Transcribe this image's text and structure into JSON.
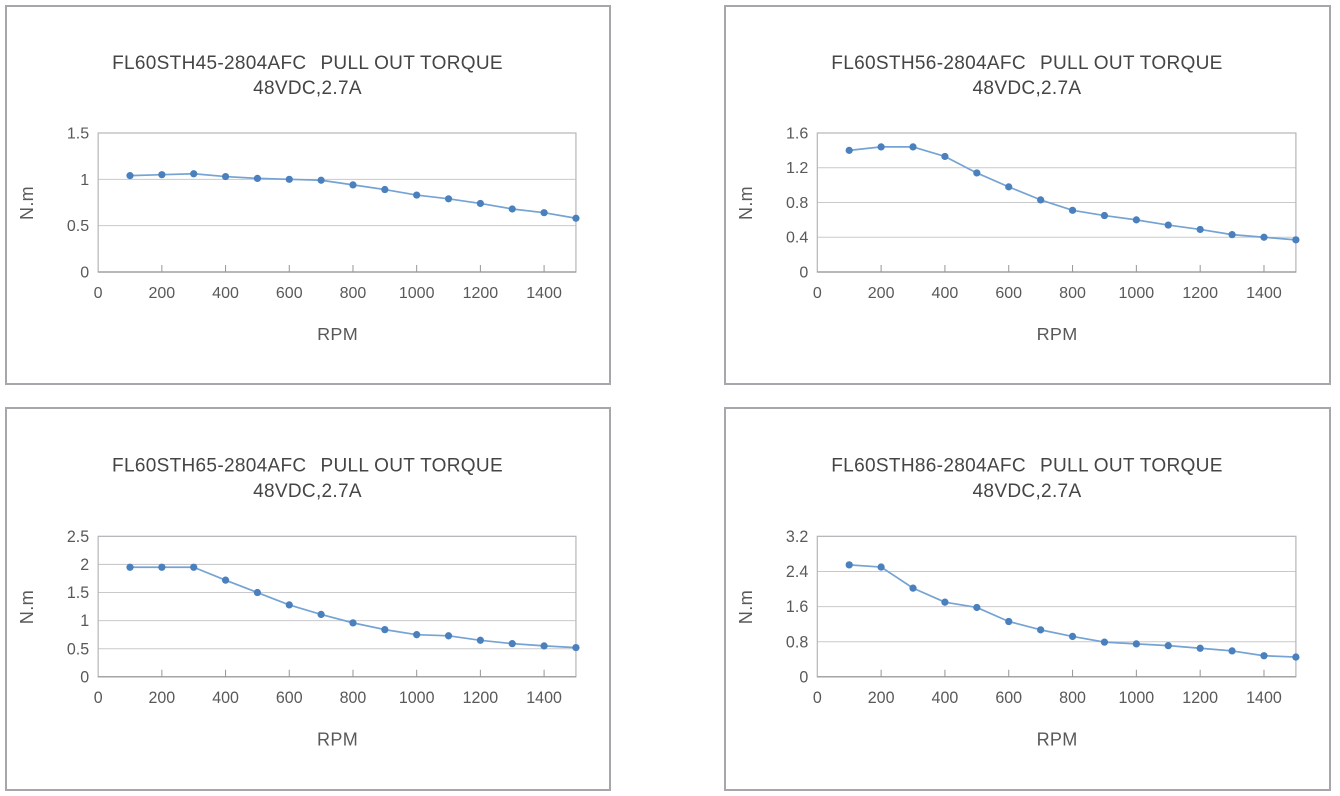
{
  "page": {
    "background": "#ffffff"
  },
  "shared": {
    "title_suffix": "PULL OUT TORQUE",
    "subtitle": "48VDC,2.7A",
    "xlabel": "RPM",
    "ylabel": "N.m",
    "colors": {
      "panel_border": "#a7a7ab",
      "plot_frame": "#b6b6ba",
      "gridline": "#c9c9cc",
      "axis": "#96969a",
      "line": "#74a3d4",
      "marker": "#4a80bd",
      "title_text": "#454545",
      "tick_text": "#595959"
    }
  },
  "chart_data": [
    {
      "type": "line",
      "model": "FL60STH45-2804AFC",
      "title": "FL60STH45-2804AFC   PULL OUT TORQUE",
      "subtitle": "48VDC,2.7A",
      "xlabel": "RPM",
      "ylabel": "N.m",
      "x": [
        100,
        200,
        300,
        400,
        500,
        600,
        700,
        800,
        900,
        1000,
        1100,
        1200,
        1300,
        1400,
        1500
      ],
      "values": [
        1.04,
        1.05,
        1.06,
        1.03,
        1.01,
        1.0,
        0.99,
        0.94,
        0.89,
        0.83,
        0.79,
        0.74,
        0.68,
        0.64,
        0.58
      ],
      "xlim": [
        0,
        1500
      ],
      "ylim": [
        0,
        1.5
      ],
      "xticks": [
        0,
        200,
        400,
        600,
        800,
        1000,
        1200,
        1400
      ],
      "yticks": [
        0,
        0.5,
        1,
        1.5
      ],
      "ytick_labels": [
        "0",
        "0.5",
        "1",
        "1.5"
      ],
      "grid": true,
      "legend": "none"
    },
    {
      "type": "line",
      "model": "FL60STH56-2804AFC",
      "title": "FL60STH56-2804AFC   PULL OUT TORQUE",
      "subtitle": "48VDC,2.7A",
      "xlabel": "RPM",
      "ylabel": "N.m",
      "x": [
        100,
        200,
        300,
        400,
        500,
        600,
        700,
        800,
        900,
        1000,
        1100,
        1200,
        1300,
        1400,
        1500
      ],
      "values": [
        1.4,
        1.44,
        1.44,
        1.33,
        1.14,
        0.98,
        0.83,
        0.71,
        0.65,
        0.6,
        0.54,
        0.49,
        0.43,
        0.4,
        0.37
      ],
      "xlim": [
        0,
        1500
      ],
      "ylim": [
        0,
        1.6
      ],
      "xticks": [
        0,
        200,
        400,
        600,
        800,
        1000,
        1200,
        1400
      ],
      "yticks": [
        0,
        0.4,
        0.8,
        1.2,
        1.6
      ],
      "ytick_labels": [
        "0",
        "0.4",
        "0.8",
        "1.2",
        "1.6"
      ],
      "grid": true,
      "legend": "none"
    },
    {
      "type": "line",
      "model": "FL60STH65-2804AFC",
      "title": "FL60STH65-2804AFC   PULL OUT TORQUE",
      "subtitle": "48VDC,2.7A",
      "xlabel": "RPM",
      "ylabel": "N.m",
      "x": [
        100,
        200,
        300,
        400,
        500,
        600,
        700,
        800,
        900,
        1000,
        1100,
        1200,
        1300,
        1400,
        1500
      ],
      "values": [
        1.95,
        1.95,
        1.95,
        1.72,
        1.5,
        1.28,
        1.11,
        0.96,
        0.84,
        0.75,
        0.73,
        0.65,
        0.59,
        0.55,
        0.52
      ],
      "xlim": [
        0,
        1500
      ],
      "ylim": [
        0,
        2.5
      ],
      "xticks": [
        0,
        200,
        400,
        600,
        800,
        1000,
        1200,
        1400
      ],
      "yticks": [
        0,
        0.5,
        1,
        1.5,
        2,
        2.5
      ],
      "ytick_labels": [
        "0",
        "0.5",
        "1",
        "1.5",
        "2",
        "2.5"
      ],
      "grid": true,
      "legend": "none"
    },
    {
      "type": "line",
      "model": "FL60STH86-2804AFC",
      "title": "FL60STH86-2804AFC   PULL OUT TORQUE",
      "subtitle": "48VDC,2.7A",
      "xlabel": "RPM",
      "ylabel": "N.m",
      "x": [
        100,
        200,
        300,
        400,
        500,
        600,
        700,
        800,
        900,
        1000,
        1100,
        1200,
        1300,
        1400,
        1500
      ],
      "values": [
        2.55,
        2.5,
        2.02,
        1.7,
        1.58,
        1.26,
        1.07,
        0.92,
        0.79,
        0.75,
        0.71,
        0.65,
        0.59,
        0.48,
        0.45
      ],
      "xlim": [
        0,
        1500
      ],
      "ylim": [
        0,
        3.2
      ],
      "xticks": [
        0,
        200,
        400,
        600,
        800,
        1000,
        1200,
        1400
      ],
      "yticks": [
        0,
        0.8,
        1.6,
        2.4,
        3.2
      ],
      "ytick_labels": [
        "0",
        "0.8",
        "1.6",
        "2.4",
        "3.2"
      ],
      "grid": true,
      "legend": "none"
    }
  ]
}
